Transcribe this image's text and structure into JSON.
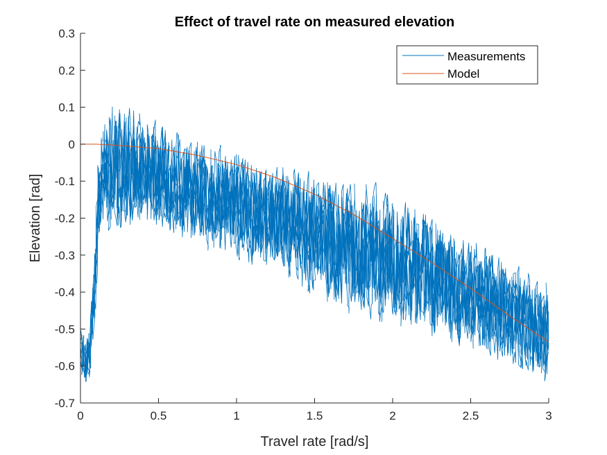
{
  "chart_data": {
    "type": "line",
    "title": "Effect of travel rate on measured elevation",
    "xlabel": "Travel rate [rad/s]",
    "ylabel": "Elevation [rad]",
    "xlim": [
      0,
      3
    ],
    "ylim": [
      -0.7,
      0.3
    ],
    "xticks": [
      0,
      0.5,
      1,
      1.5,
      2,
      2.5,
      3
    ],
    "xtick_labels": [
      "0",
      "0.5",
      "1",
      "1.5",
      "2",
      "2.5",
      "3"
    ],
    "yticks": [
      0.3,
      0.2,
      0.1,
      0,
      -0.1,
      -0.2,
      -0.3,
      -0.4,
      -0.5,
      -0.6,
      -0.7
    ],
    "ytick_labels": [
      "0.3",
      "0.2",
      "0.1",
      "0",
      "-0.1",
      "-0.2",
      "-0.3",
      "-0.4",
      "-0.5",
      "-0.6",
      "-0.7"
    ],
    "grid": false,
    "legend_position": "top-right",
    "series": [
      {
        "name": "Measurements",
        "color": "#0072BD",
        "style": "noisy-band",
        "x": [
          0,
          0.03,
          0.06,
          0.09,
          0.12,
          0.15,
          0.2,
          0.3,
          0.4,
          0.5,
          0.7,
          0.9,
          1.1,
          1.3,
          1.5,
          1.7,
          1.9,
          2.1,
          2.3,
          2.5,
          2.7,
          2.9,
          3.0
        ],
        "center": [
          -0.55,
          -0.6,
          -0.55,
          -0.4,
          -0.15,
          -0.07,
          -0.07,
          -0.06,
          -0.08,
          -0.09,
          -0.12,
          -0.15,
          -0.18,
          -0.21,
          -0.24,
          -0.27,
          -0.3,
          -0.33,
          -0.37,
          -0.41,
          -0.45,
          -0.49,
          -0.51
        ],
        "spread": [
          0.06,
          0.07,
          0.08,
          0.1,
          0.14,
          0.14,
          0.16,
          0.17,
          0.15,
          0.15,
          0.14,
          0.14,
          0.14,
          0.15,
          0.16,
          0.17,
          0.18,
          0.17,
          0.16,
          0.15,
          0.14,
          0.13,
          0.13
        ]
      },
      {
        "name": "Model",
        "color": "#D95319",
        "x": [
          0,
          0.1,
          0.2,
          0.3,
          0.5,
          0.75,
          1.0,
          1.25,
          1.5,
          1.75,
          2.0,
          2.25,
          2.5,
          2.75,
          3.0
        ],
        "y": [
          0,
          0,
          -0.002,
          -0.005,
          -0.012,
          -0.03,
          -0.055,
          -0.09,
          -0.135,
          -0.19,
          -0.255,
          -0.32,
          -0.39,
          -0.465,
          -0.535
        ]
      }
    ]
  }
}
